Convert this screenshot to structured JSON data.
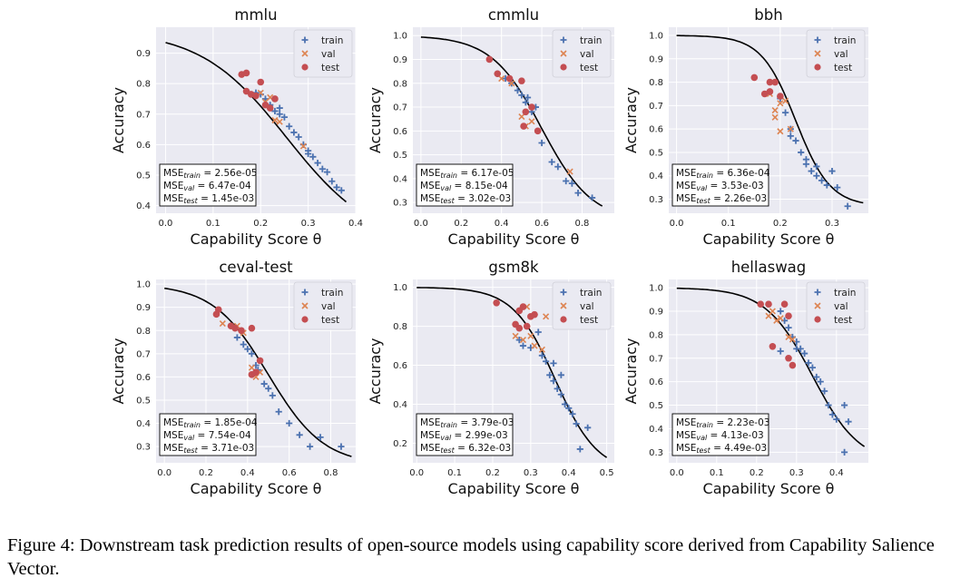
{
  "caption": "Figure 4: Downstream task prediction results of open-source models using capability score derived from Capability Salience Vector.",
  "legend": {
    "train": "train",
    "val": "val",
    "test": "test"
  },
  "colors": {
    "train": "#4c72b0",
    "val": "#dd8452",
    "test": "#c44e52",
    "curve": "#000000",
    "panel_bg": "#eaeaf2"
  },
  "chart_data": [
    {
      "type": "scatter",
      "title": "mmlu",
      "xlabel": "Capability Score θ",
      "ylabel": "Accuracy",
      "xlim": [
        -0.02,
        0.4
      ],
      "ylim": [
        0.375,
        0.985
      ],
      "xticks": [
        0.0,
        0.1,
        0.2,
        0.3,
        0.4
      ],
      "yticks": [
        0.4,
        0.5,
        0.6,
        0.7,
        0.8,
        0.9
      ],
      "curve": {
        "x0": 0.0,
        "x1": 0.38,
        "ymax": 0.975,
        "ymin": 0.27,
        "mid": 0.255,
        "k": 11
      },
      "mse": {
        "train": "2.56e-05",
        "val": "6.47e-04",
        "test": "1.45e-03"
      },
      "train": [
        [
          0.19,
          0.77
        ],
        [
          0.2,
          0.765
        ],
        [
          0.21,
          0.75
        ],
        [
          0.22,
          0.73
        ],
        [
          0.23,
          0.71
        ],
        [
          0.24,
          0.7
        ],
        [
          0.25,
          0.69
        ],
        [
          0.26,
          0.66
        ],
        [
          0.27,
          0.64
        ],
        [
          0.28,
          0.625
        ],
        [
          0.29,
          0.6
        ],
        [
          0.3,
          0.58
        ],
        [
          0.31,
          0.56
        ],
        [
          0.32,
          0.54
        ],
        [
          0.33,
          0.52
        ],
        [
          0.34,
          0.51
        ],
        [
          0.35,
          0.48
        ],
        [
          0.36,
          0.46
        ],
        [
          0.37,
          0.45
        ],
        [
          0.24,
          0.72
        ],
        [
          0.3,
          0.57
        ]
      ],
      "val": [
        [
          0.2,
          0.77
        ],
        [
          0.21,
          0.74
        ],
        [
          0.22,
          0.755
        ],
        [
          0.23,
          0.68
        ],
        [
          0.29,
          0.595
        ],
        [
          0.24,
          0.675
        ]
      ],
      "test": [
        [
          0.16,
          0.83
        ],
        [
          0.17,
          0.835
        ],
        [
          0.17,
          0.775
        ],
        [
          0.18,
          0.765
        ],
        [
          0.19,
          0.76
        ],
        [
          0.2,
          0.805
        ],
        [
          0.21,
          0.73
        ],
        [
          0.22,
          0.72
        ],
        [
          0.23,
          0.75
        ]
      ]
    },
    {
      "type": "scatter",
      "title": "cmmlu",
      "xlabel": "Capability Score θ",
      "ylabel": "Accuracy",
      "xlim": [
        -0.04,
        0.96
      ],
      "ylim": [
        0.255,
        1.035
      ],
      "xticks": [
        0.0,
        0.2,
        0.4,
        0.6,
        0.8
      ],
      "yticks": [
        0.3,
        0.4,
        0.5,
        0.6,
        0.7,
        0.8,
        0.9,
        1.0
      ],
      "curve": {
        "x0": 0.0,
        "x1": 0.9,
        "ymax": 1.0,
        "ymin": 0.22,
        "mid": 0.6,
        "k": 8
      },
      "mse": {
        "train": "6.17e-05",
        "val": "8.15e-04",
        "test": "3.02e-03"
      },
      "train": [
        [
          0.38,
          0.84
        ],
        [
          0.42,
          0.82
        ],
        [
          0.45,
          0.8
        ],
        [
          0.48,
          0.77
        ],
        [
          0.5,
          0.75
        ],
        [
          0.52,
          0.72
        ],
        [
          0.55,
          0.68
        ],
        [
          0.58,
          0.6
        ],
        [
          0.6,
          0.55
        ],
        [
          0.65,
          0.47
        ],
        [
          0.68,
          0.45
        ],
        [
          0.72,
          0.39
        ],
        [
          0.75,
          0.38
        ],
        [
          0.78,
          0.34
        ],
        [
          0.85,
          0.32
        ],
        [
          0.53,
          0.74
        ],
        [
          0.57,
          0.7
        ]
      ],
      "val": [
        [
          0.4,
          0.82
        ],
        [
          0.45,
          0.8
        ],
        [
          0.5,
          0.66
        ],
        [
          0.52,
          0.62
        ],
        [
          0.55,
          0.64
        ],
        [
          0.74,
          0.43
        ]
      ],
      "test": [
        [
          0.34,
          0.9
        ],
        [
          0.38,
          0.84
        ],
        [
          0.44,
          0.82
        ],
        [
          0.5,
          0.81
        ],
        [
          0.52,
          0.68
        ],
        [
          0.55,
          0.7
        ],
        [
          0.58,
          0.6
        ],
        [
          0.51,
          0.62
        ]
      ]
    },
    {
      "type": "scatter",
      "title": "bbh",
      "xlabel": "Capability Score θ",
      "ylabel": "Accuracy",
      "xlim": [
        -0.015,
        0.37
      ],
      "ylim": [
        0.24,
        1.035
      ],
      "xticks": [
        0.0,
        0.1,
        0.2,
        0.3
      ],
      "yticks": [
        0.3,
        0.4,
        0.5,
        0.6,
        0.7,
        0.8,
        0.9,
        1.0
      ],
      "curve": {
        "x0": 0.0,
        "x1": 0.36,
        "ymax": 1.0,
        "ymin": 0.27,
        "mid": 0.23,
        "k": 30
      },
      "mse": {
        "train": "6.36e-04",
        "val": "3.53e-03",
        "test": "2.26e-03"
      },
      "train": [
        [
          0.2,
          0.73
        ],
        [
          0.21,
          0.67
        ],
        [
          0.22,
          0.6
        ],
        [
          0.23,
          0.55
        ],
        [
          0.24,
          0.5
        ],
        [
          0.25,
          0.47
        ],
        [
          0.26,
          0.42
        ],
        [
          0.27,
          0.4
        ],
        [
          0.28,
          0.38
        ],
        [
          0.29,
          0.36
        ],
        [
          0.3,
          0.42
        ],
        [
          0.31,
          0.35
        ],
        [
          0.33,
          0.27
        ],
        [
          0.25,
          0.45
        ],
        [
          0.27,
          0.44
        ],
        [
          0.22,
          0.57
        ]
      ],
      "val": [
        [
          0.18,
          0.75
        ],
        [
          0.19,
          0.68
        ],
        [
          0.19,
          0.65
        ],
        [
          0.2,
          0.71
        ],
        [
          0.21,
          0.72
        ],
        [
          0.2,
          0.59
        ],
        [
          0.22,
          0.6
        ]
      ],
      "test": [
        [
          0.15,
          0.82
        ],
        [
          0.17,
          0.75
        ],
        [
          0.18,
          0.8
        ],
        [
          0.18,
          0.76
        ],
        [
          0.19,
          0.8
        ],
        [
          0.2,
          0.74
        ]
      ]
    },
    {
      "type": "scatter",
      "title": "ceval-test",
      "xlabel": "Capability Score θ",
      "ylabel": "Accuracy",
      "xlim": [
        -0.04,
        0.92
      ],
      "ylim": [
        0.23,
        1.02
      ],
      "xticks": [
        0.0,
        0.2,
        0.4,
        0.6,
        0.8
      ],
      "yticks": [
        0.3,
        0.4,
        0.5,
        0.6,
        0.7,
        0.8,
        0.9,
        1.0
      ],
      "curve": {
        "x0": 0.0,
        "x1": 0.9,
        "ymax": 1.0,
        "ymin": 0.22,
        "mid": 0.5,
        "k": 7.5
      },
      "mse": {
        "train": "1.85e-04",
        "val": "7.54e-04",
        "test": "3.71e-03"
      },
      "train": [
        [
          0.35,
          0.77
        ],
        [
          0.38,
          0.74
        ],
        [
          0.4,
          0.72
        ],
        [
          0.42,
          0.7
        ],
        [
          0.45,
          0.63
        ],
        [
          0.48,
          0.57
        ],
        [
          0.5,
          0.55
        ],
        [
          0.52,
          0.52
        ],
        [
          0.55,
          0.45
        ],
        [
          0.6,
          0.4
        ],
        [
          0.65,
          0.35
        ],
        [
          0.7,
          0.3
        ],
        [
          0.75,
          0.34
        ],
        [
          0.85,
          0.3
        ],
        [
          0.44,
          0.65
        ]
      ],
      "val": [
        [
          0.28,
          0.83
        ],
        [
          0.35,
          0.82
        ],
        [
          0.38,
          0.79
        ],
        [
          0.42,
          0.64
        ],
        [
          0.44,
          0.6
        ],
        [
          0.46,
          0.62
        ]
      ],
      "test": [
        [
          0.25,
          0.87
        ],
        [
          0.26,
          0.89
        ],
        [
          0.32,
          0.82
        ],
        [
          0.34,
          0.81
        ],
        [
          0.37,
          0.8
        ],
        [
          0.42,
          0.81
        ],
        [
          0.42,
          0.61
        ],
        [
          0.44,
          0.62
        ],
        [
          0.46,
          0.67
        ]
      ]
    },
    {
      "type": "scatter",
      "title": "gsm8k",
      "xlabel": "Capability Score θ",
      "ylabel": "Accuracy",
      "xlim": [
        -0.01,
        0.52
      ],
      "ylim": [
        0.1,
        1.04
      ],
      "xticks": [
        0.0,
        0.1,
        0.2,
        0.3,
        0.4,
        0.5
      ],
      "yticks": [
        0.2,
        0.4,
        0.6,
        0.8,
        1.0
      ],
      "curve": {
        "x0": 0.0,
        "x1": 0.5,
        "ymax": 1.0,
        "ymin": 0.05,
        "mid": 0.365,
        "k": 18
      },
      "mse": {
        "train": "3.79e-03",
        "val": "2.99e-03",
        "test": "6.32e-03"
      },
      "train": [
        [
          0.27,
          0.73
        ],
        [
          0.28,
          0.7
        ],
        [
          0.3,
          0.69
        ],
        [
          0.32,
          0.77
        ],
        [
          0.33,
          0.65
        ],
        [
          0.34,
          0.62
        ],
        [
          0.35,
          0.55
        ],
        [
          0.36,
          0.52
        ],
        [
          0.37,
          0.48
        ],
        [
          0.38,
          0.45
        ],
        [
          0.39,
          0.4
        ],
        [
          0.4,
          0.38
        ],
        [
          0.41,
          0.35
        ],
        [
          0.42,
          0.3
        ],
        [
          0.43,
          0.17
        ],
        [
          0.45,
          0.28
        ],
        [
          0.36,
          0.61
        ],
        [
          0.38,
          0.55
        ]
      ],
      "val": [
        [
          0.26,
          0.75
        ],
        [
          0.28,
          0.73
        ],
        [
          0.29,
          0.9
        ],
        [
          0.3,
          0.75
        ],
        [
          0.31,
          0.7
        ],
        [
          0.33,
          0.68
        ],
        [
          0.34,
          0.85
        ]
      ],
      "test": [
        [
          0.21,
          0.92
        ],
        [
          0.26,
          0.81
        ],
        [
          0.27,
          0.79
        ],
        [
          0.27,
          0.88
        ],
        [
          0.28,
          0.9
        ],
        [
          0.29,
          0.8
        ],
        [
          0.3,
          0.85
        ],
        [
          0.31,
          0.86
        ]
      ]
    },
    {
      "type": "scatter",
      "title": "hellaswag",
      "xlabel": "Capability Score θ",
      "ylabel": "Accuracy",
      "xlim": [
        -0.02,
        0.48
      ],
      "ylim": [
        0.255,
        1.035
      ],
      "xticks": [
        0.0,
        0.1,
        0.2,
        0.3,
        0.4
      ],
      "yticks": [
        0.3,
        0.4,
        0.5,
        0.6,
        0.7,
        0.8,
        0.9,
        1.0
      ],
      "curve": {
        "x0": 0.0,
        "x1": 0.47,
        "ymax": 1.0,
        "ymin": 0.25,
        "mid": 0.34,
        "k": 17
      },
      "mse": {
        "train": "2.23e-03",
        "val": "4.13e-03",
        "test": "4.49e-03"
      },
      "train": [
        [
          0.26,
          0.9
        ],
        [
          0.27,
          0.86
        ],
        [
          0.28,
          0.83
        ],
        [
          0.29,
          0.79
        ],
        [
          0.3,
          0.77
        ],
        [
          0.31,
          0.74
        ],
        [
          0.32,
          0.72
        ],
        [
          0.33,
          0.68
        ],
        [
          0.34,
          0.66
        ],
        [
          0.35,
          0.62
        ],
        [
          0.36,
          0.6
        ],
        [
          0.37,
          0.56
        ],
        [
          0.38,
          0.5
        ],
        [
          0.39,
          0.46
        ],
        [
          0.4,
          0.44
        ],
        [
          0.42,
          0.5
        ],
        [
          0.43,
          0.43
        ],
        [
          0.42,
          0.3
        ],
        [
          0.26,
          0.73
        ],
        [
          0.3,
          0.74
        ]
      ],
      "val": [
        [
          0.23,
          0.88
        ],
        [
          0.24,
          0.9
        ],
        [
          0.25,
          0.86
        ],
        [
          0.26,
          0.87
        ],
        [
          0.28,
          0.79
        ],
        [
          0.29,
          0.78
        ]
      ],
      "test": [
        [
          0.21,
          0.93
        ],
        [
          0.23,
          0.93
        ],
        [
          0.24,
          0.75
        ],
        [
          0.27,
          0.93
        ],
        [
          0.28,
          0.88
        ],
        [
          0.28,
          0.7
        ],
        [
          0.29,
          0.67
        ]
      ]
    }
  ]
}
